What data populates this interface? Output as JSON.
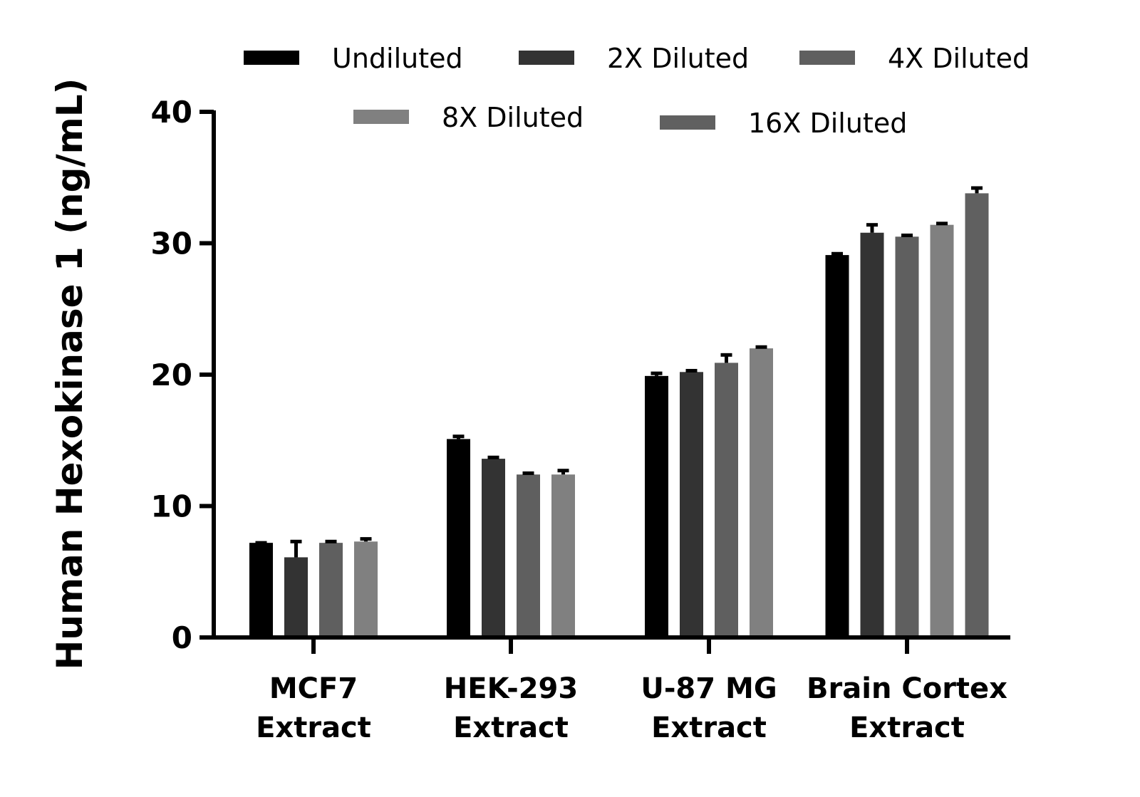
{
  "chart_data": {
    "type": "bar",
    "title": "",
    "xlabel": "",
    "ylabel": "Human Hexokinase 1 (ng/mL)",
    "ylim": [
      0,
      40
    ],
    "yticks": [
      "0",
      "10",
      "20",
      "30",
      "40"
    ],
    "grid": false,
    "legend_placement": "top",
    "categories": [
      {
        "line1": "MCF7",
        "line2": "Extract"
      },
      {
        "line1": "HEK-293",
        "line2": "Extract"
      },
      {
        "line1": "U-87 MG",
        "line2": "Extract"
      },
      {
        "line1": "Brain Cortex",
        "line2": "Extract"
      }
    ],
    "series": [
      {
        "name": "Undiluted",
        "color": "#000000",
        "values": [
          7.2,
          15.1,
          19.9,
          29.1
        ],
        "errors": [
          0.0,
          0.2,
          0.2,
          0.1
        ]
      },
      {
        "name": "2X Diluted",
        "color": "#333333",
        "values": [
          6.1,
          13.6,
          20.2,
          30.8
        ],
        "errors": [
          1.2,
          0.1,
          0.1,
          0.6
        ]
      },
      {
        "name": "4X Diluted",
        "color": "#5f5f5f",
        "values": [
          7.2,
          12.4,
          20.9,
          30.5
        ],
        "errors": [
          0.1,
          0.1,
          0.6,
          0.1
        ]
      },
      {
        "name": "8X Diluted",
        "color": "#808080",
        "values": [
          7.3,
          12.4,
          22.0,
          31.4
        ],
        "errors": [
          0.2,
          0.3,
          0.1,
          0.1
        ]
      },
      {
        "name": "16X Diluted",
        "color": "#606060",
        "values": [
          null,
          null,
          null,
          33.8
        ],
        "errors": [
          null,
          null,
          null,
          0.4
        ]
      }
    ]
  }
}
